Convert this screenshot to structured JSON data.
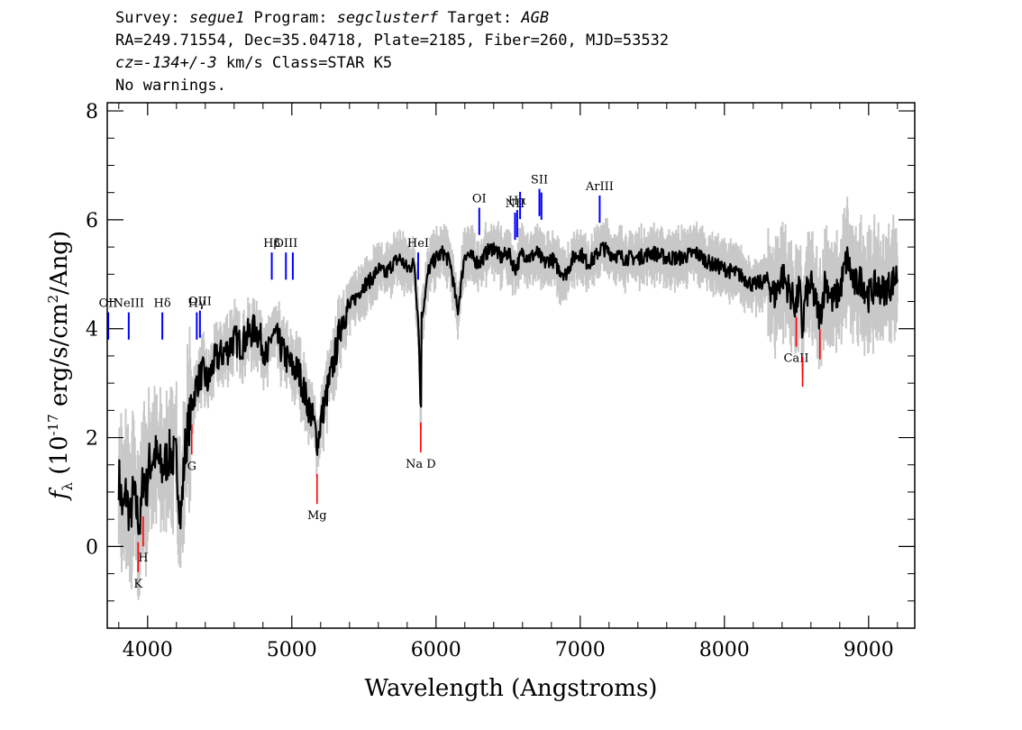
{
  "header": {
    "line1": {
      "survey_label": "Survey: ",
      "survey": "segue1",
      "program_label": " Program: ",
      "program": "segclusterf",
      "target_label": " Target: ",
      "target": "AGB"
    },
    "line2": "RA=249.71554, Dec=35.04718, Plate=2185, Fiber=260, MJD=53532",
    "line3": {
      "cz_label": "cz=",
      "cz": "-134+/-3",
      "rest": " km/s Class=STAR K5"
    },
    "line4": "No warnings."
  },
  "chart_data": {
    "type": "line",
    "xlabel": "Wavelength (Angstroms)",
    "ylabel_parts": {
      "f": "f",
      "sub": "λ",
      "open": " (10",
      "exp1": "-17",
      "mid": " erg/s/cm",
      "exp2": "2",
      "close": "/Ang)"
    },
    "xlim": [
      3720,
      9320
    ],
    "ylim": [
      -1.5,
      8.15
    ],
    "xticks": [
      4000,
      5000,
      6000,
      7000,
      8000,
      9000
    ],
    "yticks": [
      0,
      2,
      4,
      6,
      8
    ],
    "grid": false,
    "colors": {
      "flux": "#000000",
      "error": "#c8c8c8",
      "emission": "#0000ff",
      "absorption": "#ff0000"
    },
    "series": [
      {
        "role": "flux",
        "x": [
          3800,
          3830,
          3850,
          3880,
          3900,
          3920,
          3950,
          3970,
          3990,
          4010,
          4050,
          4100,
          4150,
          4200,
          4230,
          4260,
          4300,
          4340,
          4380,
          4420,
          4460,
          4500,
          4550,
          4600,
          4650,
          4700,
          4750,
          4800,
          4830,
          4860,
          4900,
          4950,
          5000,
          5050,
          5100,
          5150,
          5180,
          5200,
          5250,
          5300,
          5350,
          5400,
          5450,
          5500,
          5550,
          5600,
          5650,
          5700,
          5750,
          5800,
          5850,
          5880,
          5895,
          5900,
          5950,
          6000,
          6050,
          6100,
          6150,
          6200,
          6250,
          6300,
          6350,
          6400,
          6450,
          6500,
          6550,
          6600,
          6650,
          6700,
          6750,
          6800,
          6850,
          6900,
          6950,
          7000,
          7050,
          7100,
          7150,
          7200,
          7300,
          7400,
          7500,
          7600,
          7700,
          7800,
          7900,
          8000,
          8100,
          8200,
          8300,
          8350,
          8400,
          8450,
          8498,
          8520,
          8542,
          8560,
          8600,
          8662,
          8700,
          8750,
          8800,
          8850,
          8900,
          8950,
          9000,
          9050,
          9100,
          9150,
          9200
        ],
        "y": [
          1.3,
          0.6,
          1.0,
          0.5,
          1.0,
          0.7,
          0.4,
          1.4,
          1.0,
          1.5,
          1.7,
          1.4,
          1.7,
          1.6,
          0.5,
          1.8,
          2.5,
          3.0,
          3.2,
          3.0,
          3.4,
          3.5,
          3.6,
          3.8,
          3.7,
          3.9,
          4.0,
          3.7,
          3.4,
          3.9,
          3.8,
          3.5,
          3.3,
          3.2,
          2.7,
          2.3,
          1.9,
          2.3,
          2.9,
          3.5,
          4.2,
          4.4,
          4.6,
          4.8,
          4.9,
          5.1,
          5.0,
          5.2,
          5.3,
          5.1,
          5.2,
          4.0,
          2.3,
          4.2,
          5.1,
          5.3,
          5.4,
          5.2,
          4.3,
          5.4,
          5.3,
          5.2,
          5.4,
          5.5,
          5.3,
          5.4,
          5.1,
          5.4,
          5.3,
          5.4,
          5.2,
          5.3,
          5.1,
          5.0,
          5.3,
          5.4,
          5.2,
          5.3,
          5.5,
          5.4,
          5.3,
          5.3,
          5.4,
          5.3,
          5.3,
          5.4,
          5.2,
          5.1,
          5.0,
          4.8,
          4.9,
          4.6,
          5.0,
          4.7,
          4.4,
          4.8,
          3.9,
          4.6,
          4.8,
          4.2,
          4.9,
          4.5,
          4.7,
          5.3,
          4.8,
          4.9,
          4.6,
          4.8,
          4.7,
          4.8,
          5.0
        ]
      }
    ],
    "emission_lines": [
      {
        "label": "OII",
        "wave": 3727
      },
      {
        "label": "NeIII",
        "wave": 3869
      },
      {
        "label": "Hδ",
        "wave": 4102
      },
      {
        "label": "Hγ",
        "wave": 4341
      },
      {
        "label": "OIII",
        "wave": 4363
      },
      {
        "label": "Hβ",
        "wave": 4861
      },
      {
        "label": "OIII",
        "wave": 4959
      },
      {
        "label": "OIII",
        "wave": 5007
      },
      {
        "label": "HeI",
        "wave": 5876
      },
      {
        "label": "OI",
        "wave": 6300
      },
      {
        "label": "NII",
        "wave": 6548
      },
      {
        "label": "Hα",
        "wave": 6563
      },
      {
        "label": "NII",
        "wave": 6583
      },
      {
        "label": "SII",
        "wave": 6717
      },
      {
        "label": "SII",
        "wave": 6731
      },
      {
        "label": "ArIII",
        "wave": 7135
      }
    ],
    "absorption_lines": [
      {
        "label": "K",
        "wave": 3934
      },
      {
        "label": "H",
        "wave": 3969
      },
      {
        "label": "G",
        "wave": 4306
      },
      {
        "label": "Mg",
        "wave": 5175
      },
      {
        "label": "Na D",
        "wave": 5894
      },
      {
        "label": "CaII",
        "wave": 8498
      },
      {
        "label": "CaII",
        "wave": 8542
      },
      {
        "label": "CaII",
        "wave": 8662
      }
    ]
  }
}
